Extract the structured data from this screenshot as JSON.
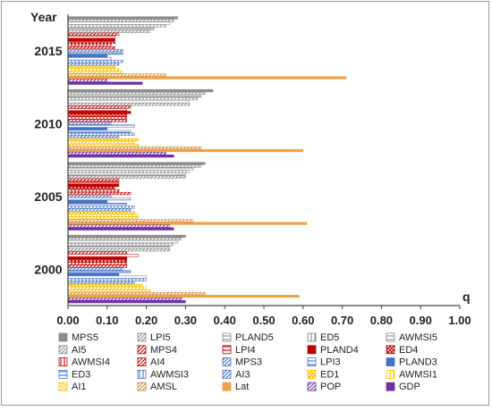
{
  "chart_data": {
    "type": "bar",
    "orientation": "horizontal",
    "ylabel": "Year",
    "xlabel": "q",
    "categories": [
      "2015",
      "2010",
      "2005",
      "2000"
    ],
    "xlim": [
      0,
      1.0
    ],
    "xticks": [
      "0.00",
      "0.10",
      "0.20",
      "0.30",
      "0.40",
      "0.50",
      "0.60",
      "0.70",
      "0.80",
      "0.90",
      "1.00"
    ],
    "grid": false,
    "legend_position": "bottom",
    "series": [
      {
        "name": "MPS5",
        "color": "#8c8c8c",
        "pattern": "solid",
        "values": [
          0.28,
          0.37,
          0.35,
          0.3
        ]
      },
      {
        "name": "LPI5",
        "color": "#8c8c8c",
        "pattern": "diag",
        "values": [
          0.27,
          0.35,
          0.34,
          0.29
        ]
      },
      {
        "name": "PLAND5",
        "color": "#8c8c8c",
        "pattern": "hline",
        "values": [
          0.26,
          0.34,
          0.32,
          0.28
        ]
      },
      {
        "name": "ED5",
        "color": "#8c8c8c",
        "pattern": "vline",
        "values": [
          0.25,
          0.33,
          0.31,
          0.27
        ]
      },
      {
        "name": "AWMSI5",
        "color": "#8c8c8c",
        "pattern": "hline",
        "values": [
          0.22,
          0.31,
          0.3,
          0.26
        ]
      },
      {
        "name": "AI5",
        "color": "#8c8c8c",
        "pattern": "diag",
        "values": [
          0.21,
          0.31,
          0.3,
          0.26
        ]
      },
      {
        "name": "MPS4",
        "color": "#c00000",
        "pattern": "diag",
        "values": [
          0.13,
          0.16,
          0.13,
          0.15
        ]
      },
      {
        "name": "LPI4",
        "color": "#c00000",
        "pattern": "hline",
        "values": [
          0.12,
          0.15,
          0.13,
          0.18
        ]
      },
      {
        "name": "PLAND4",
        "color": "#c00000",
        "pattern": "solid",
        "values": [
          0.12,
          0.16,
          0.13,
          0.15
        ]
      },
      {
        "name": "ED4",
        "color": "#c00000",
        "pattern": "cross",
        "values": [
          0.12,
          0.15,
          0.12,
          0.15
        ]
      },
      {
        "name": "AWMSI4",
        "color": "#c00000",
        "pattern": "vline",
        "values": [
          0.11,
          0.15,
          0.13,
          0.15
        ]
      },
      {
        "name": "AI4",
        "color": "#c00000",
        "pattern": "diag",
        "values": [
          0.12,
          0.15,
          0.16,
          0.15
        ]
      },
      {
        "name": "MPS3",
        "color": "#4472c4",
        "pattern": "diag",
        "values": [
          0.14,
          0.11,
          0.11,
          0.14
        ]
      },
      {
        "name": "LPI3",
        "color": "#4472c4",
        "pattern": "hline",
        "values": [
          0.14,
          0.17,
          0.16,
          0.16
        ]
      },
      {
        "name": "PLAND3",
        "color": "#4472c4",
        "pattern": "solid",
        "values": [
          0.1,
          0.1,
          0.1,
          0.13
        ]
      },
      {
        "name": "ED3",
        "color": "#4472c4",
        "pattern": "hline",
        "values": [
          0.11,
          0.16,
          0.15,
          0.2
        ]
      },
      {
        "name": "AWMSI3",
        "color": "#4472c4",
        "pattern": "vline",
        "values": [
          0.14,
          0.17,
          0.17,
          0.2
        ]
      },
      {
        "name": "AI3",
        "color": "#4472c4",
        "pattern": "diag",
        "values": [
          0.13,
          0.13,
          0.16,
          0.17
        ]
      },
      {
        "name": "ED1",
        "color": "#ffc000",
        "pattern": "cross",
        "values": [
          0.12,
          0.18,
          0.17,
          0.19
        ]
      },
      {
        "name": "AWMSI1",
        "color": "#ffc000",
        "pattern": "vline",
        "values": [
          0.13,
          0.17,
          0.18,
          0.2
        ]
      },
      {
        "name": "AI1",
        "color": "#ffc000",
        "pattern": "diag",
        "values": [
          0.14,
          0.18,
          0.18,
          0.21
        ]
      },
      {
        "name": "AMSL",
        "color": "#c8893b",
        "pattern": "diag",
        "values": [
          0.25,
          0.34,
          0.32,
          0.35
        ]
      },
      {
        "name": "Lat",
        "color": "#f0a045",
        "pattern": "solid",
        "values": [
          0.71,
          0.6,
          0.61,
          0.59
        ]
      },
      {
        "name": "POP",
        "color": "#7030a0",
        "pattern": "diag",
        "values": [
          0.1,
          0.25,
          0.26,
          0.29
        ]
      },
      {
        "name": "GDP",
        "color": "#7030a0",
        "pattern": "solid",
        "values": [
          0.19,
          0.27,
          0.27,
          0.3
        ]
      }
    ]
  }
}
